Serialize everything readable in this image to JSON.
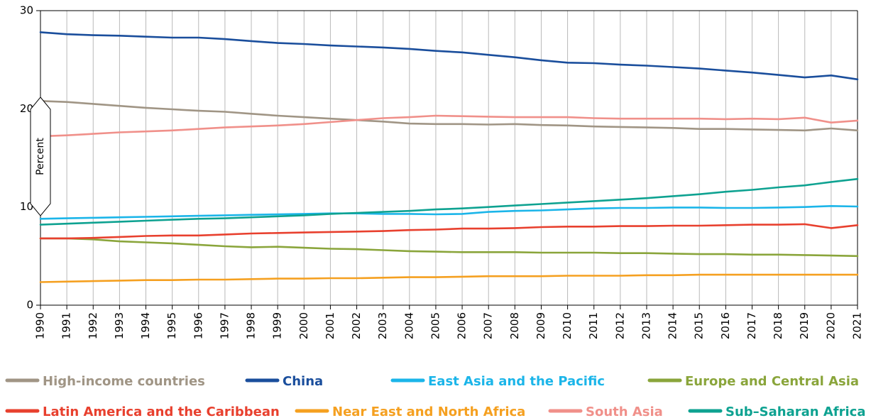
{
  "chart_data": {
    "type": "line",
    "title": "",
    "xlabel": "",
    "ylabel": "Percent",
    "ylim": [
      0,
      30
    ],
    "yticks": [
      0,
      10,
      20,
      30
    ],
    "xlim": [
      1990,
      2021
    ],
    "grid": "vertical",
    "legend_position": "bottom",
    "x": [
      1990,
      1991,
      1992,
      1993,
      1994,
      1995,
      1996,
      1997,
      1998,
      1999,
      2000,
      2001,
      2002,
      2003,
      2004,
      2005,
      2006,
      2007,
      2008,
      2009,
      2010,
      2011,
      2012,
      2013,
      2014,
      2015,
      2016,
      2017,
      2018,
      2019,
      2020,
      2021
    ],
    "series": [
      {
        "name": "High-income countries",
        "color": "#a09585",
        "values": [
          20.8,
          20.7,
          20.5,
          20.3,
          20.1,
          19.95,
          19.8,
          19.7,
          19.5,
          19.3,
          19.15,
          19.0,
          18.85,
          18.7,
          18.5,
          18.45,
          18.45,
          18.4,
          18.45,
          18.35,
          18.3,
          18.2,
          18.15,
          18.1,
          18.05,
          17.95,
          17.95,
          17.9,
          17.85,
          17.8,
          18.0,
          17.8
        ]
      },
      {
        "name": "China",
        "color": "#1a4e9c",
        "values": [
          27.8,
          27.6,
          27.5,
          27.45,
          27.35,
          27.25,
          27.25,
          27.1,
          26.9,
          26.7,
          26.6,
          26.45,
          26.35,
          26.25,
          26.1,
          25.9,
          25.75,
          25.5,
          25.25,
          24.95,
          24.7,
          24.65,
          24.5,
          24.4,
          24.25,
          24.1,
          23.9,
          23.7,
          23.45,
          23.2,
          23.4,
          23.0
        ]
      },
      {
        "name": "East Asia and the Pacific",
        "color": "#1bb5e9",
        "values": [
          8.8,
          8.85,
          8.9,
          8.95,
          9.0,
          9.05,
          9.1,
          9.15,
          9.2,
          9.25,
          9.3,
          9.35,
          9.35,
          9.3,
          9.3,
          9.25,
          9.3,
          9.5,
          9.6,
          9.65,
          9.75,
          9.85,
          9.9,
          9.9,
          9.95,
          9.95,
          9.9,
          9.9,
          9.95,
          10.0,
          10.1,
          10.05
        ]
      },
      {
        "name": "Europe and Central Asia",
        "color": "#8aa53b",
        "values": [
          6.8,
          6.8,
          6.7,
          6.5,
          6.4,
          6.3,
          6.15,
          6.0,
          5.9,
          5.95,
          5.85,
          5.75,
          5.7,
          5.6,
          5.5,
          5.45,
          5.4,
          5.4,
          5.4,
          5.35,
          5.35,
          5.35,
          5.3,
          5.3,
          5.25,
          5.2,
          5.2,
          5.15,
          5.15,
          5.1,
          5.05,
          5.0
        ]
      },
      {
        "name": "Latin America and the Caribbean",
        "color": "#e8402e",
        "values": [
          6.8,
          6.8,
          6.85,
          6.95,
          7.05,
          7.1,
          7.1,
          7.2,
          7.3,
          7.35,
          7.4,
          7.45,
          7.5,
          7.55,
          7.65,
          7.7,
          7.8,
          7.8,
          7.85,
          7.95,
          8.0,
          8.0,
          8.05,
          8.05,
          8.1,
          8.1,
          8.15,
          8.2,
          8.2,
          8.25,
          7.85,
          8.15
        ]
      },
      {
        "name": "Near East and North Africa",
        "color": "#f5a020",
        "values": [
          2.35,
          2.4,
          2.45,
          2.5,
          2.55,
          2.55,
          2.6,
          2.6,
          2.65,
          2.7,
          2.7,
          2.75,
          2.75,
          2.8,
          2.85,
          2.85,
          2.9,
          2.95,
          2.95,
          2.95,
          3.0,
          3.0,
          3.0,
          3.05,
          3.05,
          3.1,
          3.1,
          3.1,
          3.1,
          3.1,
          3.1,
          3.1
        ]
      },
      {
        "name": "South Asia",
        "color": "#f0908a",
        "values": [
          17.2,
          17.3,
          17.45,
          17.6,
          17.7,
          17.8,
          17.95,
          18.1,
          18.2,
          18.3,
          18.45,
          18.65,
          18.85,
          19.05,
          19.15,
          19.3,
          19.25,
          19.2,
          19.15,
          19.15,
          19.15,
          19.05,
          19.0,
          19.0,
          19.0,
          19.0,
          18.95,
          19.0,
          18.95,
          19.1,
          18.6,
          18.8
        ]
      },
      {
        "name": "Sub-Saharan Africa",
        "color": "#0ea291",
        "values": [
          8.2,
          8.3,
          8.4,
          8.5,
          8.6,
          8.7,
          8.8,
          8.85,
          8.95,
          9.05,
          9.15,
          9.3,
          9.4,
          9.5,
          9.6,
          9.75,
          9.85,
          10.0,
          10.15,
          10.3,
          10.45,
          10.6,
          10.75,
          10.9,
          11.1,
          11.3,
          11.55,
          11.75,
          12.0,
          12.2,
          12.55,
          12.85
        ]
      }
    ]
  },
  "legend": {
    "items": [
      {
        "label": "High-income countries",
        "color": "#a09585"
      },
      {
        "label": "China",
        "color": "#1a4e9c"
      },
      {
        "label": "East Asia and the Pacific",
        "color": "#1bb5e9"
      },
      {
        "label": "Europe and Central Asia",
        "color": "#8aa53b"
      },
      {
        "label": "Latin America and the Caribbean",
        "color": "#e8402e"
      },
      {
        "label": "Near East and North Africa",
        "color": "#f5a020"
      },
      {
        "label": "South Asia",
        "color": "#f0908a"
      },
      {
        "label": "Sub–Saharan Africa",
        "color": "#0ea291"
      }
    ]
  }
}
